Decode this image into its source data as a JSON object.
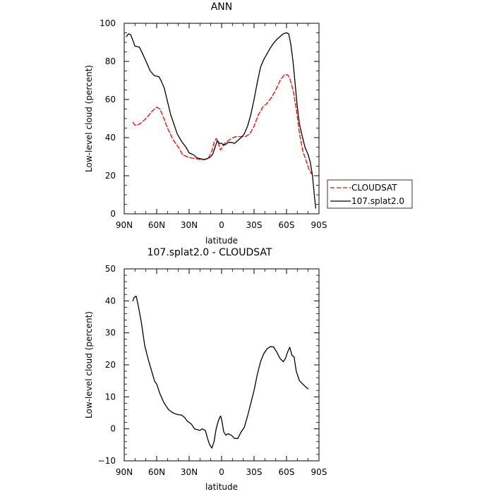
{
  "chart_data": [
    {
      "type": "line",
      "title": "ANN",
      "xlabel": "latitude",
      "ylabel": "Low-level cloud (percent)",
      "xlim": [
        90,
        -90
      ],
      "ylim": [
        0,
        100
      ],
      "xticks": [
        90,
        60,
        30,
        0,
        -30,
        -60,
        -90
      ],
      "xtick_labels": [
        "90N",
        "60N",
        "30N",
        "0",
        "30S",
        "60S",
        "90S"
      ],
      "yticks": [
        0,
        20,
        40,
        60,
        80,
        100
      ],
      "ytick_labels": [
        "0",
        "20",
        "40",
        "60",
        "80",
        "100"
      ],
      "legend_position": "right",
      "series": [
        {
          "name": "CLOUDSAT",
          "color": "#ff0000",
          "dash": "dashed",
          "points": [
            [
              82,
              48
            ],
            [
              80,
              46.5
            ],
            [
              76,
              47
            ],
            [
              70,
              50
            ],
            [
              64,
              54
            ],
            [
              60,
              56
            ],
            [
              57,
              55
            ],
            [
              54,
              51
            ],
            [
              50,
              45
            ],
            [
              45,
              39
            ],
            [
              40,
              35
            ],
            [
              36,
              31
            ],
            [
              30,
              29.5
            ],
            [
              24,
              29
            ],
            [
              20,
              28.5
            ],
            [
              16,
              28.5
            ],
            [
              12,
              29.5
            ],
            [
              9,
              33
            ],
            [
              7,
              37.5
            ],
            [
              5,
              39.5
            ],
            [
              3,
              37
            ],
            [
              1,
              33.5
            ],
            [
              -2,
              36.5
            ],
            [
              -5,
              38
            ],
            [
              -9,
              39.5
            ],
            [
              -13,
              40.5
            ],
            [
              -18,
              40.5
            ],
            [
              -22,
              40.5
            ],
            [
              -26,
              42
            ],
            [
              -30,
              46
            ],
            [
              -34,
              52
            ],
            [
              -38,
              56
            ],
            [
              -42,
              58
            ],
            [
              -46,
              61
            ],
            [
              -50,
              65
            ],
            [
              -54,
              70
            ],
            [
              -58,
              73
            ],
            [
              -61,
              73
            ],
            [
              -63,
              71
            ],
            [
              -66,
              65
            ],
            [
              -69,
              55
            ],
            [
              -72,
              42
            ],
            [
              -75,
              33
            ],
            [
              -78,
              28
            ],
            [
              -81,
              23
            ],
            [
              -83,
              21
            ]
          ]
        },
        {
          "name": "107.splat2.0",
          "color": "#000000",
          "dash": "solid",
          "points": [
            [
              88,
              93
            ],
            [
              86,
              94.5
            ],
            [
              84,
              94
            ],
            [
              82,
              91
            ],
            [
              80,
              88
            ],
            [
              76,
              87.5
            ],
            [
              73,
              84
            ],
            [
              69,
              79
            ],
            [
              66,
              75
            ],
            [
              62,
              72.5
            ],
            [
              58,
              72
            ],
            [
              56,
              70
            ],
            [
              53,
              66
            ],
            [
              50,
              59
            ],
            [
              47,
              52
            ],
            [
              44,
              47
            ],
            [
              41,
              42
            ],
            [
              37,
              38
            ],
            [
              33,
              35
            ],
            [
              30,
              32
            ],
            [
              26,
              31
            ],
            [
              23,
              29.5
            ],
            [
              20,
              29
            ],
            [
              16,
              28.5
            ],
            [
              13,
              29
            ],
            [
              10,
              30
            ],
            [
              8,
              31.5
            ],
            [
              6,
              35
            ],
            [
              4,
              38.5
            ],
            [
              2,
              37
            ],
            [
              0,
              37
            ],
            [
              -2,
              36
            ],
            [
              -4,
              36.5
            ],
            [
              -6,
              37.5
            ],
            [
              -9,
              37.5
            ],
            [
              -12,
              37
            ],
            [
              -15,
              38.5
            ],
            [
              -18,
              40
            ],
            [
              -21,
              42
            ],
            [
              -24,
              46
            ],
            [
              -27,
              52
            ],
            [
              -30,
              60
            ],
            [
              -33,
              69
            ],
            [
              -36,
              77
            ],
            [
              -39,
              81
            ],
            [
              -42,
              84
            ],
            [
              -45,
              87
            ],
            [
              -48,
              89.5
            ],
            [
              -51,
              91.5
            ],
            [
              -54,
              93
            ],
            [
              -57,
              94.5
            ],
            [
              -60,
              95
            ],
            [
              -62,
              94.5
            ],
            [
              -64,
              89
            ],
            [
              -66,
              80
            ],
            [
              -68,
              68
            ],
            [
              -70,
              56
            ],
            [
              -72,
              47
            ],
            [
              -74,
              42
            ],
            [
              -77,
              35
            ],
            [
              -80,
              31
            ],
            [
              -82,
              27
            ],
            [
              -84,
              20
            ],
            [
              -86,
              8
            ],
            [
              -87,
              3
            ]
          ]
        }
      ]
    },
    {
      "type": "line",
      "title": "107.splat2.0 - CLOUDSAT",
      "xlabel": "latitude",
      "ylabel": "Low-level cloud (percent)",
      "xlim": [
        90,
        -90
      ],
      "ylim": [
        -10,
        50
      ],
      "xticks": [
        90,
        60,
        30,
        0,
        -30,
        -60,
        -90
      ],
      "xtick_labels": [
        "90N",
        "60N",
        "30N",
        "0",
        "30S",
        "60S",
        "90S"
      ],
      "yticks": [
        -10,
        0,
        10,
        20,
        30,
        40,
        50
      ],
      "ytick_labels": [
        "−10",
        "0",
        "10",
        "20",
        "30",
        "40",
        "50"
      ],
      "series": [
        {
          "color": "#000000",
          "dash": "solid",
          "points": [
            [
              82,
              40
            ],
            [
              81,
              41
            ],
            [
              79,
              41.5
            ],
            [
              77,
              38.5
            ],
            [
              74,
              33
            ],
            [
              71,
              26
            ],
            [
              68,
              22
            ],
            [
              65,
              18.5
            ],
            [
              62,
              15
            ],
            [
              60,
              14
            ],
            [
              57,
              11
            ],
            [
              53,
              8
            ],
            [
              49,
              6
            ],
            [
              45,
              5
            ],
            [
              41,
              4.5
            ],
            [
              37,
              4.3
            ],
            [
              34,
              3.5
            ],
            [
              32,
              2.5
            ],
            [
              28,
              1.5
            ],
            [
              25,
              0
            ],
            [
              20,
              -0.5
            ],
            [
              18,
              0
            ],
            [
              15,
              -0.5
            ],
            [
              13,
              -3
            ],
            [
              11,
              -5
            ],
            [
              9,
              -6
            ],
            [
              7,
              -4
            ],
            [
              5,
              0
            ],
            [
              3,
              2.5
            ],
            [
              1,
              4
            ],
            [
              0,
              3
            ],
            [
              -2,
              -1
            ],
            [
              -4,
              -2
            ],
            [
              -6,
              -1.5
            ],
            [
              -9,
              -2
            ],
            [
              -12,
              -3
            ],
            [
              -15,
              -3
            ],
            [
              -18,
              -1
            ],
            [
              -21,
              0.5
            ],
            [
              -24,
              4
            ],
            [
              -27,
              8
            ],
            [
              -30,
              12
            ],
            [
              -33,
              17
            ],
            [
              -36,
              21
            ],
            [
              -39,
              23.5
            ],
            [
              -42,
              25
            ],
            [
              -45,
              25.7
            ],
            [
              -48,
              25.6
            ],
            [
              -51,
              24
            ],
            [
              -54,
              22
            ],
            [
              -57,
              21
            ],
            [
              -59,
              22
            ],
            [
              -61,
              24
            ],
            [
              -63,
              25.5
            ],
            [
              -65,
              23
            ],
            [
              -67,
              22.5
            ],
            [
              -69,
              18
            ],
            [
              -72,
              15
            ],
            [
              -75,
              14
            ],
            [
              -78,
              13
            ],
            [
              -80,
              12.5
            ]
          ]
        }
      ]
    }
  ]
}
